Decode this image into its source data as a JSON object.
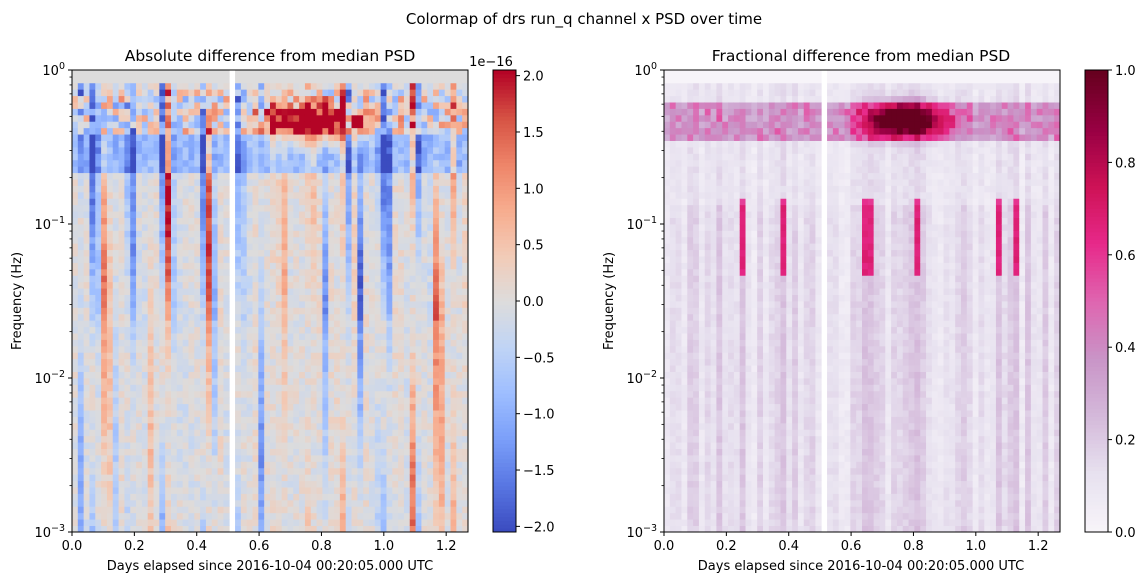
{
  "figure": {
    "suptitle": "Colormap of drs run_q channel x PSD over time"
  },
  "chart_data": [
    {
      "type": "heatmap",
      "title": "Absolute difference from median PSD",
      "xlabel": "Days elapsed since 2016-10-04 00:20:05.000 UTC",
      "ylabel": "Frequency (Hz)",
      "xlim": [
        0.0,
        1.27
      ],
      "ylim": [
        0.001,
        1.0
      ],
      "yscale": "log",
      "xticks": [
        "0.0",
        "0.2",
        "0.4",
        "0.6",
        "0.8",
        "1.0",
        "1.2"
      ],
      "yticks": [
        "10−3",
        "10−2",
        "10−1",
        "100"
      ],
      "colormap": "coolwarm",
      "colorbar": {
        "offset_label": "1e−16",
        "min": -2.05,
        "max": 2.05,
        "ticks": [
          "−2.0",
          "−1.5",
          "−1.0",
          "−0.5",
          "0.0",
          "0.5",
          "1.0",
          "1.5",
          "2.0"
        ],
        "colors": [
          "#3b4cc0",
          "#5977e3",
          "#7b9ff9",
          "#9ebeff",
          "#c0d4f5",
          "#dddcdc",
          "#f2cbb7",
          "#f7ac8e",
          "#ee8468",
          "#d65244",
          "#b40426"
        ]
      },
      "grid": false
    },
    {
      "type": "heatmap",
      "title": "Fractional difference from median PSD",
      "xlabel": "Days elapsed since 2016-10-04 00:20:05.000 UTC",
      "ylabel": "Frequency (Hz)",
      "xlim": [
        0.0,
        1.27
      ],
      "ylim": [
        0.001,
        1.0
      ],
      "yscale": "log",
      "xticks": [
        "0.0",
        "0.2",
        "0.4",
        "0.6",
        "0.8",
        "1.0",
        "1.2"
      ],
      "yticks": [
        "10−3",
        "10−2",
        "10−1",
        "100"
      ],
      "colormap": "PuRd",
      "colorbar": {
        "min": 0.0,
        "max": 1.0,
        "ticks": [
          "0.0",
          "0.2",
          "0.4",
          "0.6",
          "0.8",
          "1.0"
        ],
        "colors": [
          "#f7f4f9",
          "#e7e1ef",
          "#d4b9da",
          "#c994c7",
          "#df65b0",
          "#e7298a",
          "#ce1256",
          "#980043",
          "#67001f"
        ]
      },
      "grid": false
    }
  ]
}
